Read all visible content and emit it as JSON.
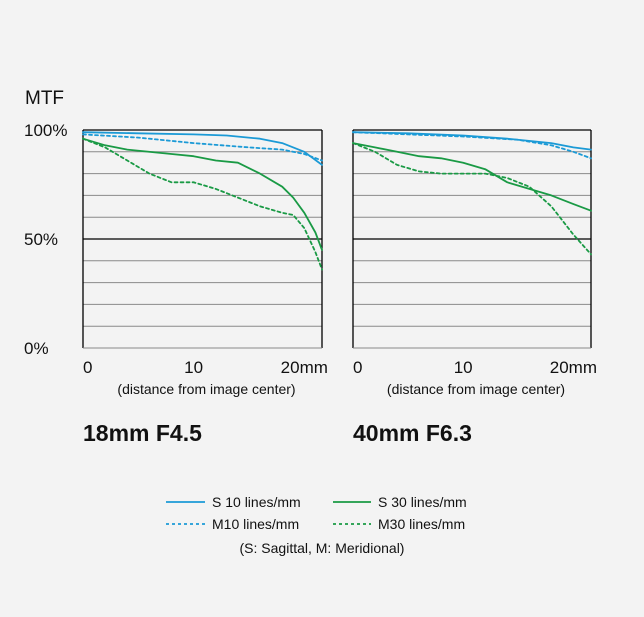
{
  "colors": {
    "sagittal_10": "#1b9ad6",
    "meridional_10": "#1b9ad6",
    "sagittal_30": "#1a9a45",
    "meridional_30": "#1a9a45",
    "grid": "#8a8a8a",
    "axis": "#000000"
  },
  "shared": {
    "ylabel_title": "MTF",
    "y_ticks": [
      "100%",
      "50%",
      "0%"
    ],
    "x_ticks": [
      "0",
      "10",
      "20mm"
    ],
    "xlabel": "(distance from image center)"
  },
  "legend": {
    "s10": "S 10 lines/mm",
    "s30": "S 30 lines/mm",
    "m10": "M10 lines/mm",
    "m30": "M30 lines/mm",
    "note": "(S: Sagittal, M: Meridional)"
  },
  "chart_data": [
    {
      "type": "line",
      "title": "18mm F4.5",
      "xlim": [
        0,
        21.6
      ],
      "ylim": [
        0,
        100
      ],
      "grid": true,
      "series": [
        {
          "name": "S 10 lines/mm",
          "style": "solid",
          "x": [
            0,
            5,
            10,
            13,
            16,
            18,
            20,
            21.6
          ],
          "y": [
            99,
            98.5,
            98,
            97.5,
            96,
            94,
            90,
            84
          ]
        },
        {
          "name": "M10 lines/mm",
          "style": "dashed",
          "x": [
            0,
            5,
            10,
            15,
            18,
            20,
            21.6
          ],
          "y": [
            98,
            96.5,
            94,
            92,
            91,
            89,
            86
          ]
        },
        {
          "name": "S 30 lines/mm",
          "style": "solid",
          "x": [
            0,
            2,
            4,
            8,
            10,
            12,
            14,
            16,
            18,
            19,
            20,
            21,
            21.6
          ],
          "y": [
            96,
            93,
            91,
            89,
            88,
            86,
            85,
            80,
            74,
            69,
            62,
            53,
            45
          ]
        },
        {
          "name": "M30 lines/mm",
          "style": "dashed",
          "x": [
            0,
            2,
            4,
            6,
            8,
            10,
            12,
            14,
            16,
            18,
            19,
            20,
            21,
            21.6
          ],
          "y": [
            96,
            92,
            86,
            80,
            76,
            76,
            73,
            69,
            65,
            62,
            61,
            55,
            44,
            36
          ]
        }
      ]
    },
    {
      "type": "line",
      "title": "40mm F6.3",
      "xlim": [
        0,
        21.6
      ],
      "ylim": [
        0,
        100
      ],
      "grid": true,
      "series": [
        {
          "name": "S 10 lines/mm",
          "style": "solid",
          "x": [
            0,
            5,
            10,
            14,
            18,
            20,
            21.6
          ],
          "y": [
            99,
            98.5,
            97.5,
            96,
            94,
            92,
            91
          ]
        },
        {
          "name": "M10 lines/mm",
          "style": "dashed",
          "x": [
            0,
            5,
            10,
            15,
            18,
            20,
            21.6
          ],
          "y": [
            99,
            98,
            97,
            95.5,
            93,
            90,
            87
          ]
        },
        {
          "name": "S 30 lines/mm",
          "style": "solid",
          "x": [
            0,
            2,
            4,
            6,
            8,
            10,
            12,
            14,
            16,
            18,
            20,
            21.6
          ],
          "y": [
            94,
            92,
            90,
            88,
            87,
            85,
            82,
            76,
            73,
            70,
            66,
            63
          ]
        },
        {
          "name": "M30 lines/mm",
          "style": "dashed",
          "x": [
            0,
            2,
            4,
            6,
            8,
            10,
            12,
            14,
            16,
            18,
            20,
            21.6
          ],
          "y": [
            94,
            90,
            84,
            81,
            80,
            80,
            80,
            78,
            74,
            65,
            52,
            43
          ]
        }
      ]
    }
  ]
}
